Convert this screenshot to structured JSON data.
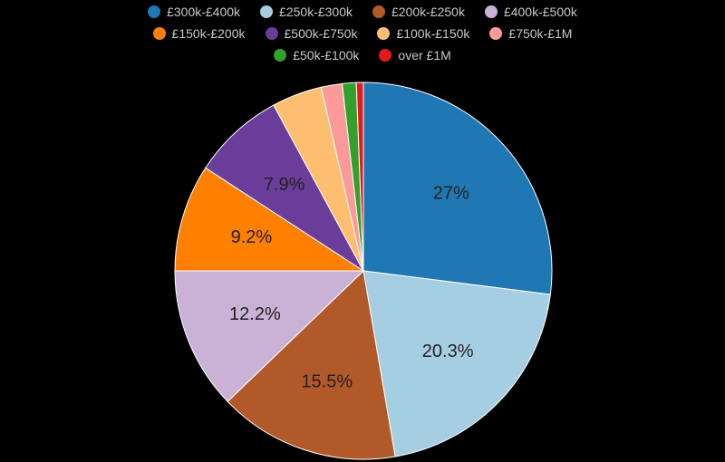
{
  "chart_data": {
    "type": "pie",
    "title": "",
    "legend_position": "top",
    "slices": [
      {
        "label": "£300k-£400k",
        "value": 27.0,
        "display": "27%",
        "color": "#1f77b4"
      },
      {
        "label": "£250k-£300k",
        "value": 20.3,
        "display": "20.3%",
        "color": "#a6cee3"
      },
      {
        "label": "£200k-£250k",
        "value": 15.5,
        "display": "15.5%",
        "color": "#b15928"
      },
      {
        "label": "£400k-£500k",
        "value": 12.2,
        "display": "12.2%",
        "color": "#cab2d6"
      },
      {
        "label": "£150k-£200k",
        "value": 9.2,
        "display": "9.2%",
        "color": "#ff7f00"
      },
      {
        "label": "£500k-£750k",
        "value": 7.9,
        "display": "7.9%",
        "color": "#6a3d9a"
      },
      {
        "label": "£100k-£150k",
        "value": 4.3,
        "display": "",
        "color": "#fdbf6f"
      },
      {
        "label": "£750k-£1M",
        "value": 1.8,
        "display": "",
        "color": "#fb9a99"
      },
      {
        "label": "£50k-£100k",
        "value": 1.2,
        "display": "",
        "color": "#33a02c"
      },
      {
        "label": "over £1M",
        "value": 0.6,
        "display": "",
        "color": "#e31a1c"
      }
    ]
  }
}
